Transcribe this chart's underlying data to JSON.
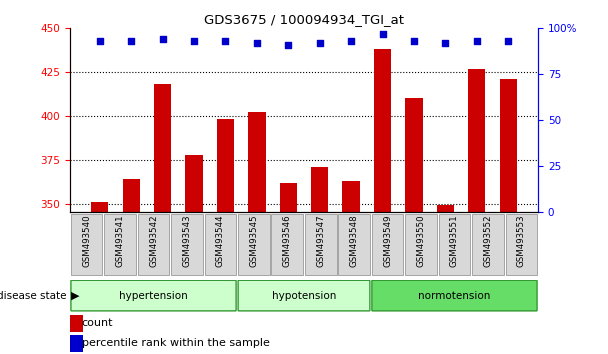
{
  "title": "GDS3675 / 100094934_TGI_at",
  "categories": [
    "GSM493540",
    "GSM493541",
    "GSM493542",
    "GSM493543",
    "GSM493544",
    "GSM493545",
    "GSM493546",
    "GSM493547",
    "GSM493548",
    "GSM493549",
    "GSM493550",
    "GSM493551",
    "GSM493552",
    "GSM493553"
  ],
  "bar_values": [
    351,
    364,
    418,
    378,
    398,
    402,
    362,
    371,
    363,
    438,
    410,
    349,
    427,
    421
  ],
  "percentile_values": [
    93,
    93,
    94,
    93,
    93,
    92,
    91,
    92,
    93,
    97,
    93,
    92,
    93,
    93
  ],
  "ylim_left": [
    345,
    450
  ],
  "ylim_right": [
    0,
    100
  ],
  "yticks_left": [
    350,
    375,
    400,
    425,
    450
  ],
  "yticks_right": [
    0,
    25,
    50,
    75,
    100
  ],
  "groups": [
    {
      "label": "hypertension",
      "start": 0,
      "end": 5,
      "color": "#ccffcc"
    },
    {
      "label": "hypotension",
      "start": 5,
      "end": 9,
      "color": "#ccffcc"
    },
    {
      "label": "normotension",
      "start": 9,
      "end": 14,
      "color": "#66dd66"
    }
  ],
  "bar_color": "#cc0000",
  "dot_color": "#0000cc",
  "background_color": "#ffffff",
  "bar_baseline": 345,
  "grid_color": "#000000",
  "legend_items": [
    "count",
    "percentile rank within the sample"
  ],
  "right_ytick_labels": [
    "0",
    "25",
    "50",
    "75",
    "100%"
  ]
}
